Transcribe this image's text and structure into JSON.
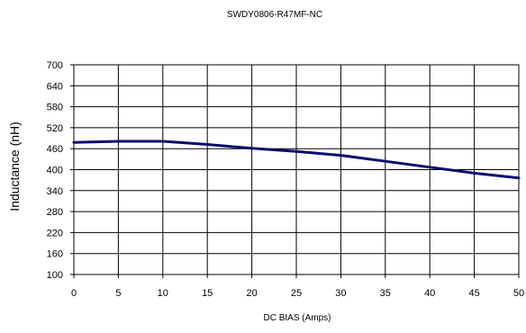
{
  "chart_data": {
    "type": "line",
    "title": "SWDY0806-R47MF-NC",
    "xlabel": "DC BIAS (Amps)",
    "ylabel": "Inductance (nH)",
    "xlim": [
      0,
      50
    ],
    "ylim": [
      100,
      700
    ],
    "x_ticks": [
      0,
      5,
      10,
      15,
      20,
      25,
      30,
      35,
      40,
      45,
      50
    ],
    "y_ticks": [
      100,
      160,
      220,
      280,
      340,
      400,
      460,
      520,
      580,
      640,
      700
    ],
    "grid": true,
    "legend": "none",
    "series": [
      {
        "color": "#0a0a6e",
        "x": [
          0,
          5,
          10,
          15,
          20,
          25,
          30,
          35,
          40,
          45,
          50
        ],
        "y": [
          478,
          481,
          481,
          472,
          461,
          452,
          441,
          424,
          407,
          390,
          376
        ]
      }
    ]
  }
}
